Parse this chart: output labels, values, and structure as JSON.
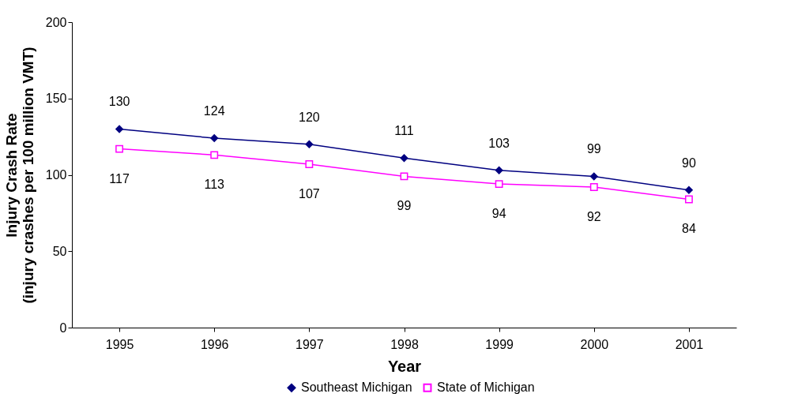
{
  "chart_data": {
    "type": "line",
    "xlabel": "Year",
    "ylabel": "Injury Crash Rate\n(injury crashes per 100 million VMT)",
    "categories": [
      "1995",
      "1996",
      "1997",
      "1998",
      "1999",
      "2000",
      "2001"
    ],
    "series": [
      {
        "name": "Southeast Michigan",
        "color": "#000080",
        "marker": "diamond",
        "values": [
          130,
          124,
          120,
          111,
          103,
          99,
          90
        ]
      },
      {
        "name": "State of Michigan",
        "color": "#ff00ff",
        "marker": "square",
        "values": [
          117,
          113,
          107,
          99,
          94,
          92,
          84
        ]
      }
    ],
    "ylim": [
      0,
      200
    ],
    "yticks": [
      0,
      50,
      100,
      150,
      200
    ],
    "grid": false,
    "legend": "bottom",
    "data_labels": true,
    "line_style": "solid"
  }
}
